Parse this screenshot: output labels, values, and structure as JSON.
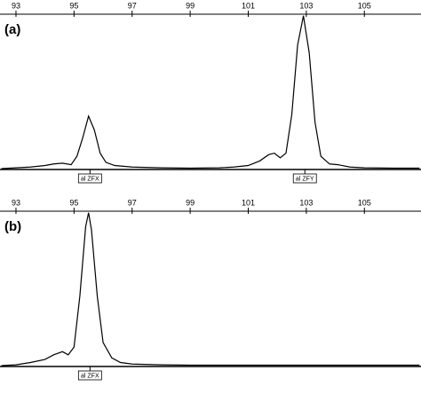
{
  "chart_data": [
    {
      "type": "line",
      "label": "(a)",
      "color": "#000000",
      "xlim": [
        92.45,
        106.95
      ],
      "ylim": [
        0,
        100
      ],
      "xticks": [
        93,
        95,
        97,
        99,
        101,
        103,
        105
      ],
      "x": [
        92.5,
        93,
        93.5,
        94,
        94.3,
        94.6,
        94.9,
        95.1,
        95.3,
        95.5,
        95.7,
        95.9,
        96.1,
        96.4,
        97,
        98,
        99,
        100,
        100.5,
        101,
        101.4,
        101.7,
        101.9,
        102.1,
        102.3,
        102.5,
        102.7,
        102.9,
        103.1,
        103.3,
        103.5,
        103.8,
        104.1,
        104.5,
        105,
        106,
        106.9
      ],
      "values": [
        0,
        0.5,
        1,
        2,
        3,
        3.5,
        2.5,
        8,
        20,
        34,
        25,
        10,
        4,
        2,
        1,
        0.5,
        0.3,
        0.5,
        1,
        2,
        5,
        9,
        10,
        7,
        10,
        35,
        80,
        99,
        75,
        30,
        8,
        3,
        2.5,
        1,
        0.5,
        0.3,
        0.3
      ],
      "annotations": [
        {
          "text": "al ZFX",
          "x": 95.55
        },
        {
          "text": "al ZFY",
          "x": 102.95
        }
      ]
    },
    {
      "type": "line",
      "label": "(b)",
      "color": "#000000",
      "xlim": [
        92.45,
        106.95
      ],
      "ylim": [
        0,
        100
      ],
      "xticks": [
        93,
        95,
        97,
        99,
        101,
        103,
        105
      ],
      "x": [
        92.5,
        93,
        93.5,
        94,
        94.3,
        94.6,
        94.8,
        95,
        95.2,
        95.4,
        95.5,
        95.6,
        95.8,
        96,
        96.3,
        96.6,
        97,
        98,
        99,
        100,
        101,
        102,
        103,
        104,
        105,
        106,
        106.9
      ],
      "values": [
        0,
        0.5,
        2,
        4,
        7,
        9,
        7,
        12,
        45,
        90,
        99,
        88,
        45,
        15,
        5,
        2,
        1,
        0.5,
        0.3,
        0.3,
        0.3,
        0.3,
        0.3,
        0.3,
        0.3,
        0.3,
        0.3
      ],
      "annotations": [
        {
          "text": "al ZFX",
          "x": 95.55
        }
      ]
    }
  ]
}
